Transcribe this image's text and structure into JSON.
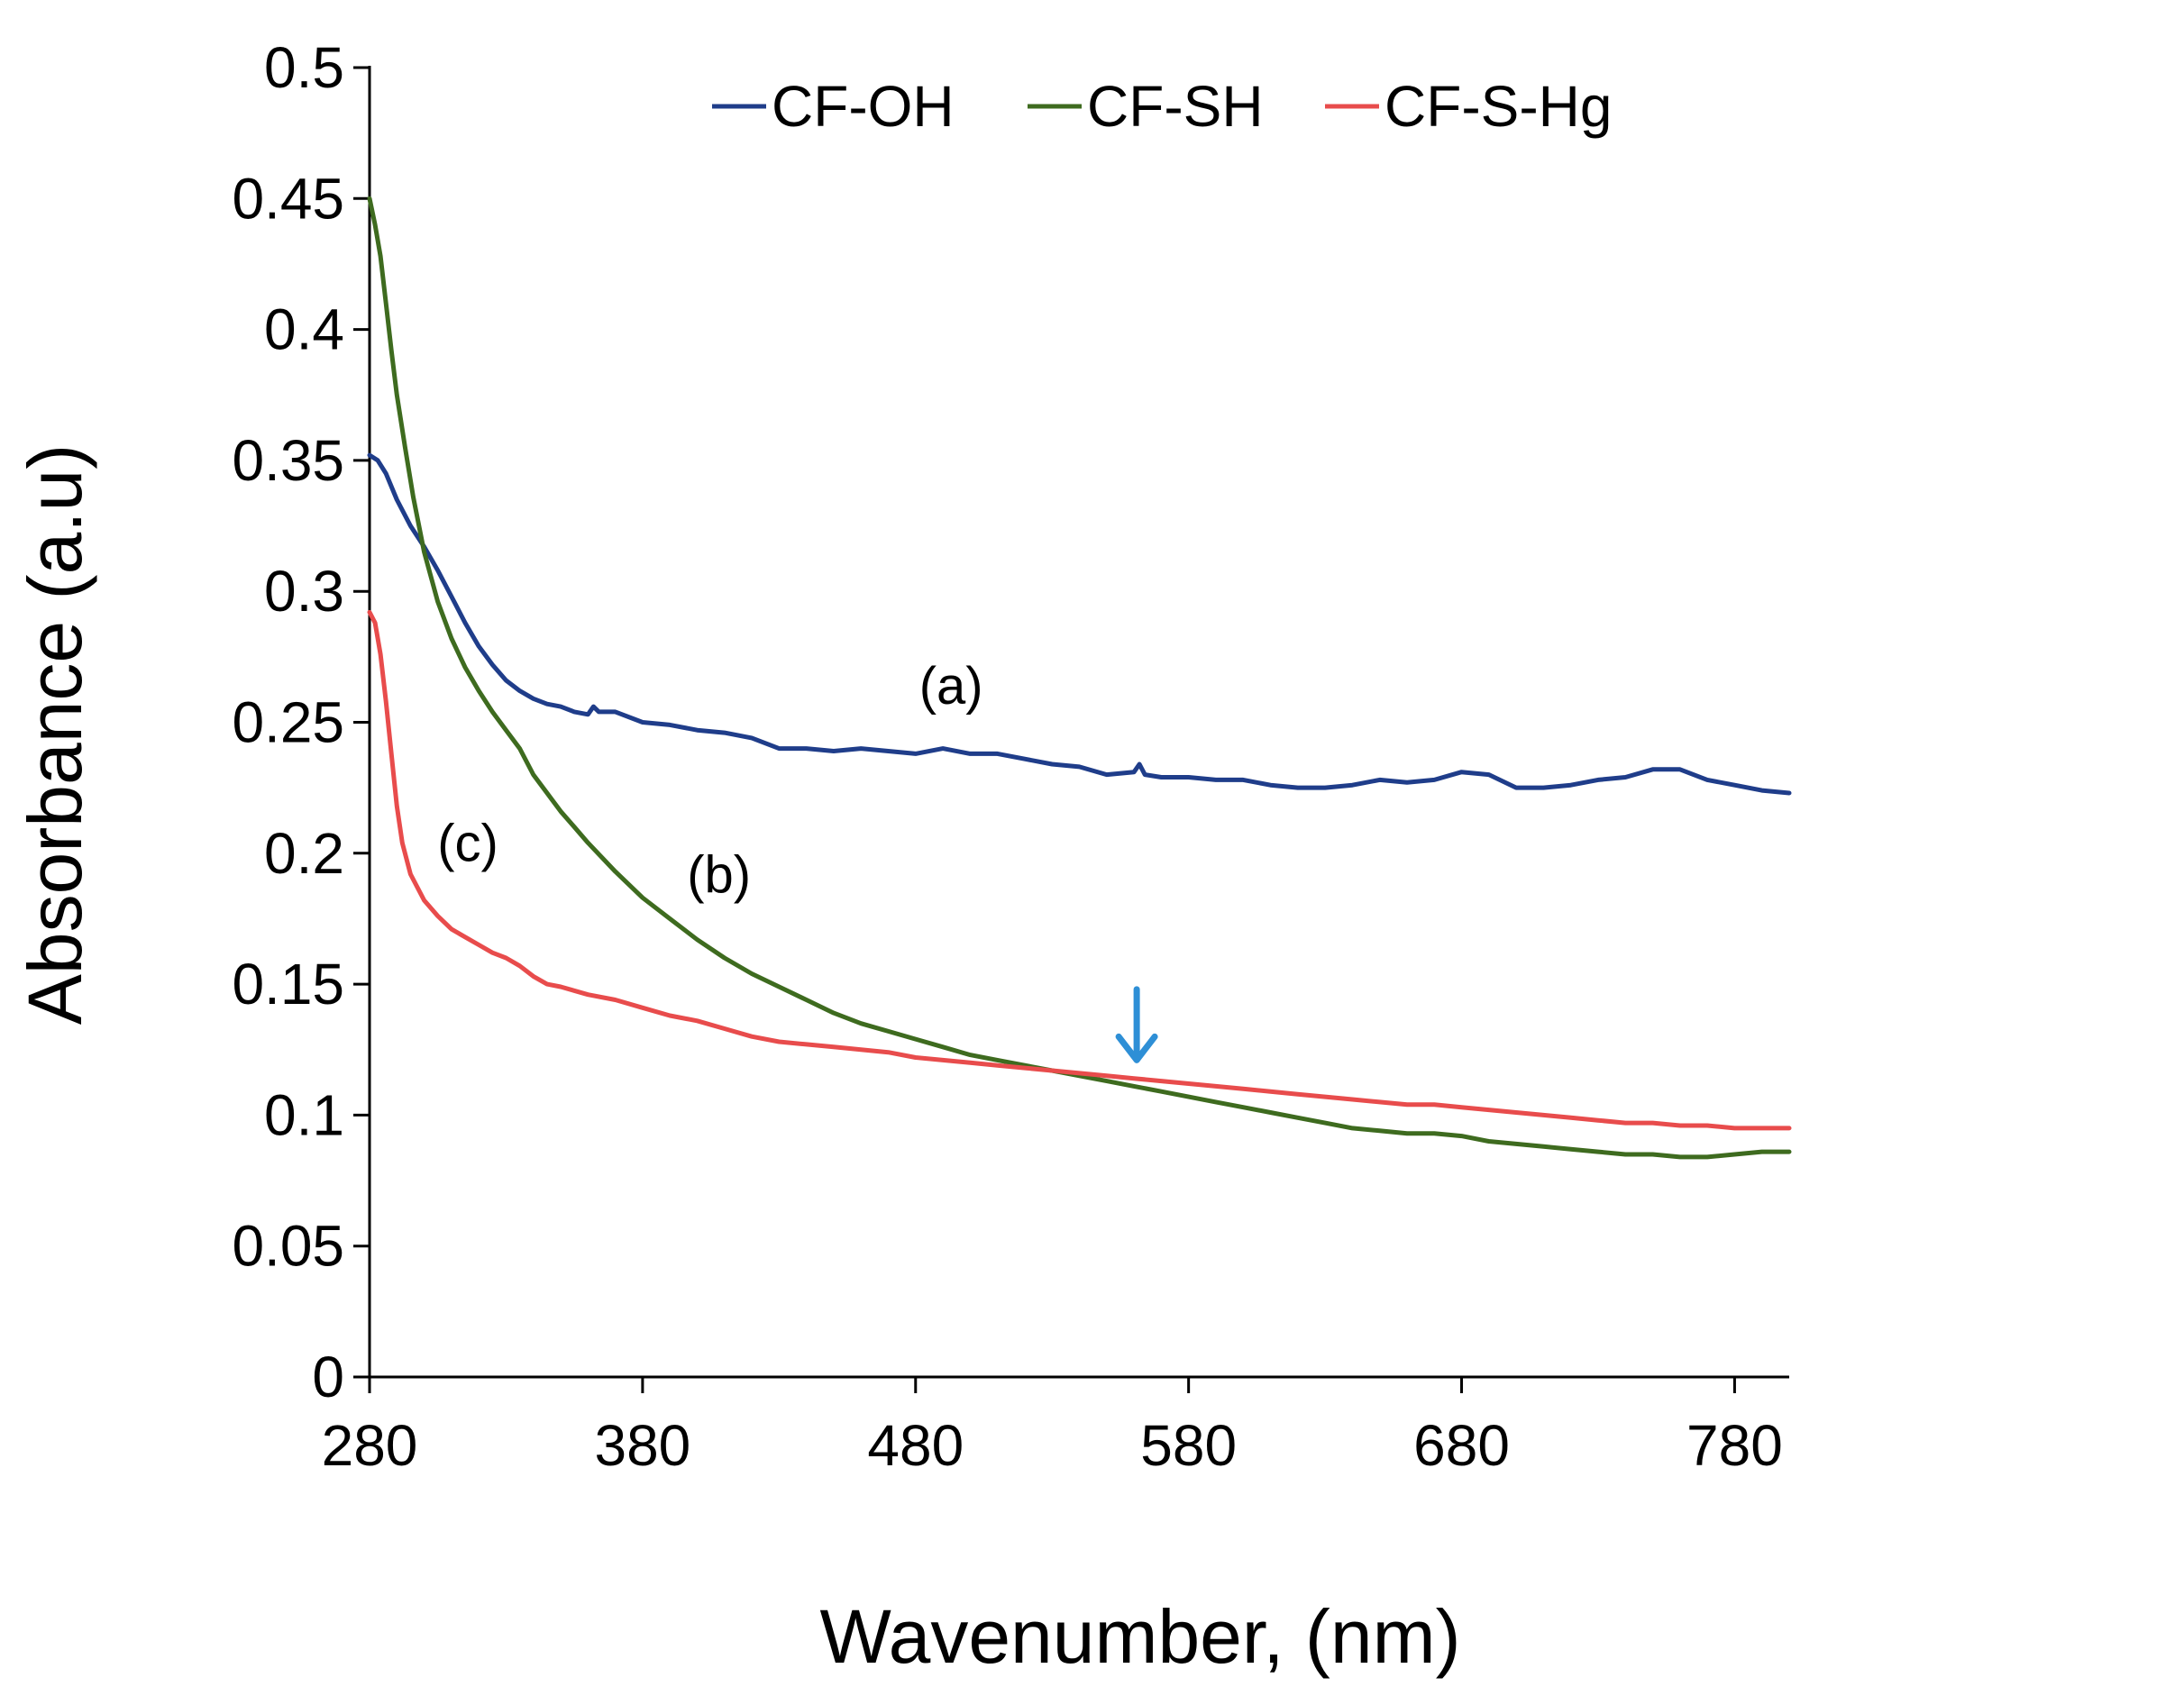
{
  "chart_data": {
    "type": "line",
    "title": "",
    "xlabel": "Wavenumber, (nm)",
    "ylabel": "Absorbance (a.u)",
    "xlim": [
      280,
      800
    ],
    "ylim": [
      0,
      0.5
    ],
    "x_ticks": [
      280,
      380,
      480,
      580,
      680,
      780
    ],
    "x_tick_labels": [
      "280",
      "380",
      "480",
      "580",
      "680",
      "780"
    ],
    "y_ticks": [
      0,
      0.05,
      0.1,
      0.15,
      0.2,
      0.25,
      0.3,
      0.35,
      0.4,
      0.45,
      0.5
    ],
    "y_tick_labels": [
      "0",
      "0.05",
      "0.1",
      "0.15",
      "0.2",
      "0.25",
      "0.3",
      "0.35",
      "0.4",
      "0.45",
      "0.5"
    ],
    "grid": false,
    "legend_position": "top-center",
    "series": [
      {
        "name": "CF-OH",
        "color": "#1f3d8a",
        "points": [
          [
            280,
            0.352
          ],
          [
            283,
            0.35
          ],
          [
            286,
            0.345
          ],
          [
            290,
            0.335
          ],
          [
            295,
            0.325
          ],
          [
            300,
            0.317
          ],
          [
            305,
            0.308
          ],
          [
            310,
            0.298
          ],
          [
            315,
            0.288
          ],
          [
            320,
            0.279
          ],
          [
            325,
            0.272
          ],
          [
            330,
            0.266
          ],
          [
            335,
            0.262
          ],
          [
            340,
            0.259
          ],
          [
            345,
            0.257
          ],
          [
            350,
            0.256
          ],
          [
            355,
            0.254
          ],
          [
            360,
            0.253
          ],
          [
            362,
            0.256
          ],
          [
            364,
            0.254
          ],
          [
            370,
            0.254
          ],
          [
            380,
            0.25
          ],
          [
            390,
            0.249
          ],
          [
            400,
            0.247
          ],
          [
            410,
            0.246
          ],
          [
            420,
            0.244
          ],
          [
            430,
            0.24
          ],
          [
            440,
            0.24
          ],
          [
            450,
            0.239
          ],
          [
            460,
            0.24
          ],
          [
            470,
            0.239
          ],
          [
            480,
            0.238
          ],
          [
            490,
            0.24
          ],
          [
            500,
            0.238
          ],
          [
            510,
            0.238
          ],
          [
            520,
            0.236
          ],
          [
            530,
            0.234
          ],
          [
            540,
            0.233
          ],
          [
            550,
            0.23
          ],
          [
            560,
            0.231
          ],
          [
            562,
            0.234
          ],
          [
            564,
            0.23
          ],
          [
            570,
            0.229
          ],
          [
            580,
            0.229
          ],
          [
            590,
            0.228
          ],
          [
            600,
            0.228
          ],
          [
            610,
            0.226
          ],
          [
            620,
            0.225
          ],
          [
            630,
            0.225
          ],
          [
            640,
            0.226
          ],
          [
            650,
            0.228
          ],
          [
            660,
            0.227
          ],
          [
            670,
            0.228
          ],
          [
            680,
            0.231
          ],
          [
            690,
            0.23
          ],
          [
            700,
            0.225
          ],
          [
            710,
            0.225
          ],
          [
            720,
            0.226
          ],
          [
            730,
            0.228
          ],
          [
            740,
            0.229
          ],
          [
            750,
            0.232
          ],
          [
            760,
            0.232
          ],
          [
            770,
            0.228
          ],
          [
            780,
            0.226
          ],
          [
            790,
            0.224
          ],
          [
            800,
            0.223
          ]
        ]
      },
      {
        "name": "CF-SH",
        "color": "#3e6b1f",
        "points": [
          [
            280,
            0.45
          ],
          [
            282,
            0.44
          ],
          [
            284,
            0.428
          ],
          [
            286,
            0.41
          ],
          [
            288,
            0.392
          ],
          [
            290,
            0.375
          ],
          [
            293,
            0.355
          ],
          [
            296,
            0.336
          ],
          [
            300,
            0.315
          ],
          [
            305,
            0.296
          ],
          [
            310,
            0.282
          ],
          [
            315,
            0.271
          ],
          [
            320,
            0.262
          ],
          [
            325,
            0.254
          ],
          [
            330,
            0.247
          ],
          [
            335,
            0.24
          ],
          [
            340,
            0.23
          ],
          [
            345,
            0.223
          ],
          [
            350,
            0.216
          ],
          [
            355,
            0.21
          ],
          [
            360,
            0.204
          ],
          [
            370,
            0.193
          ],
          [
            380,
            0.183
          ],
          [
            390,
            0.175
          ],
          [
            400,
            0.167
          ],
          [
            410,
            0.16
          ],
          [
            420,
            0.154
          ],
          [
            430,
            0.149
          ],
          [
            440,
            0.144
          ],
          [
            450,
            0.139
          ],
          [
            460,
            0.135
          ],
          [
            470,
            0.132
          ],
          [
            480,
            0.129
          ],
          [
            490,
            0.126
          ],
          [
            500,
            0.123
          ],
          [
            510,
            0.121
          ],
          [
            520,
            0.119
          ],
          [
            530,
            0.117
          ],
          [
            540,
            0.115
          ],
          [
            550,
            0.113
          ],
          [
            560,
            0.111
          ],
          [
            570,
            0.109
          ],
          [
            580,
            0.107
          ],
          [
            590,
            0.105
          ],
          [
            600,
            0.103
          ],
          [
            610,
            0.101
          ],
          [
            620,
            0.099
          ],
          [
            630,
            0.097
          ],
          [
            640,
            0.095
          ],
          [
            650,
            0.094
          ],
          [
            660,
            0.093
          ],
          [
            670,
            0.093
          ],
          [
            680,
            0.092
          ],
          [
            690,
            0.09
          ],
          [
            700,
            0.089
          ],
          [
            710,
            0.088
          ],
          [
            720,
            0.087
          ],
          [
            730,
            0.086
          ],
          [
            740,
            0.085
          ],
          [
            750,
            0.085
          ],
          [
            760,
            0.084
          ],
          [
            770,
            0.084
          ],
          [
            780,
            0.085
          ],
          [
            790,
            0.086
          ],
          [
            800,
            0.086
          ]
        ]
      },
      {
        "name": "CF-S-Hg",
        "color": "#e84c4c",
        "points": [
          [
            280,
            0.292
          ],
          [
            282,
            0.288
          ],
          [
            284,
            0.276
          ],
          [
            286,
            0.258
          ],
          [
            288,
            0.238
          ],
          [
            290,
            0.218
          ],
          [
            292,
            0.204
          ],
          [
            295,
            0.192
          ],
          [
            300,
            0.182
          ],
          [
            305,
            0.176
          ],
          [
            310,
            0.171
          ],
          [
            315,
            0.168
          ],
          [
            320,
            0.165
          ],
          [
            325,
            0.162
          ],
          [
            330,
            0.16
          ],
          [
            335,
            0.157
          ],
          [
            340,
            0.153
          ],
          [
            345,
            0.15
          ],
          [
            350,
            0.149
          ],
          [
            360,
            0.146
          ],
          [
            370,
            0.144
          ],
          [
            380,
            0.141
          ],
          [
            390,
            0.138
          ],
          [
            400,
            0.136
          ],
          [
            410,
            0.133
          ],
          [
            420,
            0.13
          ],
          [
            430,
            0.128
          ],
          [
            440,
            0.127
          ],
          [
            450,
            0.126
          ],
          [
            460,
            0.125
          ],
          [
            470,
            0.124
          ],
          [
            480,
            0.122
          ],
          [
            490,
            0.121
          ],
          [
            500,
            0.12
          ],
          [
            510,
            0.119
          ],
          [
            520,
            0.118
          ],
          [
            530,
            0.117
          ],
          [
            540,
            0.116
          ],
          [
            550,
            0.115
          ],
          [
            560,
            0.114
          ],
          [
            570,
            0.113
          ],
          [
            580,
            0.112
          ],
          [
            590,
            0.111
          ],
          [
            600,
            0.11
          ],
          [
            610,
            0.109
          ],
          [
            620,
            0.108
          ],
          [
            630,
            0.107
          ],
          [
            640,
            0.106
          ],
          [
            650,
            0.105
          ],
          [
            660,
            0.104
          ],
          [
            670,
            0.104
          ],
          [
            680,
            0.103
          ],
          [
            690,
            0.102
          ],
          [
            700,
            0.101
          ],
          [
            710,
            0.1
          ],
          [
            720,
            0.099
          ],
          [
            730,
            0.098
          ],
          [
            740,
            0.097
          ],
          [
            750,
            0.097
          ],
          [
            760,
            0.096
          ],
          [
            770,
            0.096
          ],
          [
            780,
            0.095
          ],
          [
            790,
            0.095
          ],
          [
            800,
            0.095
          ]
        ]
      }
    ],
    "annotations": [
      {
        "text": "(a)",
        "x": 493,
        "y": 0.257
      },
      {
        "text": "(b)",
        "x": 408,
        "y": 0.185
      },
      {
        "text": "(c)",
        "x": 316,
        "y": 0.197
      }
    ],
    "arrow": {
      "x": 561,
      "y_from": 0.148,
      "y_to": 0.121,
      "color": "#2e8fd6"
    }
  }
}
